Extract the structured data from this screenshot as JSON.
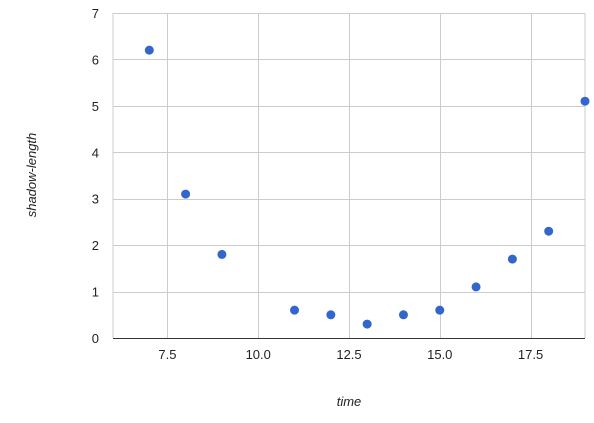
{
  "chart_data": {
    "type": "scatter",
    "title": "",
    "xlabel": "time",
    "ylabel": "shadow-length",
    "xlim": [
      6.0,
      19.0
    ],
    "ylim": [
      0,
      7
    ],
    "x_ticks": [
      7.5,
      10.0,
      12.5,
      15.0,
      17.5
    ],
    "x_tick_labels": [
      "7.5",
      "10.0",
      "12.5",
      "15.0",
      "17.5"
    ],
    "y_ticks": [
      0,
      1,
      2,
      3,
      4,
      5,
      6,
      7
    ],
    "y_tick_labels": [
      "0",
      "1",
      "2",
      "3",
      "4",
      "5",
      "6",
      "7"
    ],
    "grid": true,
    "legend": "none",
    "colors": {
      "point": "#3366cc",
      "grid": "#cccccc",
      "axis_text": "#222222"
    },
    "series": [
      {
        "points": [
          {
            "x": 7,
            "y": 6.2
          },
          {
            "x": 8,
            "y": 3.1
          },
          {
            "x": 9,
            "y": 1.8
          },
          {
            "x": 11,
            "y": 0.6
          },
          {
            "x": 12,
            "y": 0.5
          },
          {
            "x": 13,
            "y": 0.3
          },
          {
            "x": 14,
            "y": 0.5
          },
          {
            "x": 15,
            "y": 0.6
          },
          {
            "x": 16,
            "y": 1.1
          },
          {
            "x": 17,
            "y": 1.7
          },
          {
            "x": 18,
            "y": 2.3
          },
          {
            "x": 19,
            "y": 5.1
          }
        ]
      }
    ]
  }
}
